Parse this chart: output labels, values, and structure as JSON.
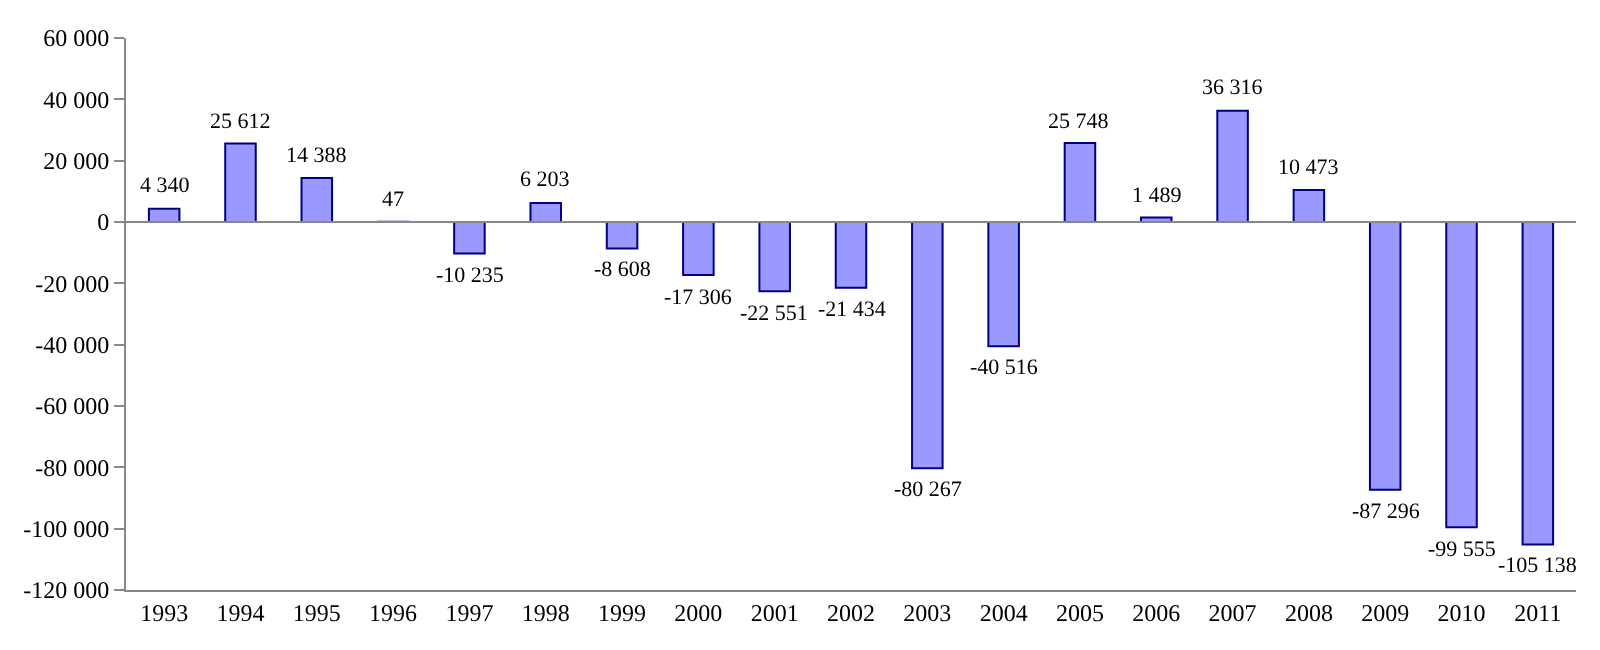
{
  "chart_data": {
    "type": "bar",
    "categories": [
      "1993",
      "1994",
      "1995",
      "1996",
      "1997",
      "1998",
      "1999",
      "2000",
      "2001",
      "2002",
      "2003",
      "2004",
      "2005",
      "2006",
      "2007",
      "2008",
      "2009",
      "2010",
      "2011"
    ],
    "values": [
      4340,
      25612,
      14388,
      47,
      -10235,
      6203,
      -8608,
      -17306,
      -22551,
      -21434,
      -80267,
      -40516,
      25748,
      1489,
      36316,
      10473,
      -87296,
      -99555,
      -105138
    ],
    "value_labels": [
      "4 340",
      "25 612",
      "14 388",
      "47",
      "-10 235",
      "6 203",
      "-8 608",
      "-17 306",
      "-22 551",
      "-21 434",
      "-80 267",
      "-40 516",
      "25 748",
      "1 489",
      "36 316",
      "10 473",
      "-87 296",
      "-99 555",
      "-105 138"
    ],
    "color": "#9999ff",
    "ylim": [
      -120000,
      60000
    ],
    "yticks": [
      {
        "value": -120000,
        "label": "-120 000"
      },
      {
        "value": -100000,
        "label": "-100 000"
      },
      {
        "value": -80000,
        "label": "-80 000"
      },
      {
        "value": -60000,
        "label": "-60 000"
      },
      {
        "value": -40000,
        "label": "-40 000"
      },
      {
        "value": -20000,
        "label": "-20 000"
      },
      {
        "value": 0,
        "label": "0"
      },
      {
        "value": 20000,
        "label": "20 000"
      },
      {
        "value": 40000,
        "label": "40 000"
      },
      {
        "value": 60000,
        "label": "60 000"
      }
    ],
    "ref_lines": [
      {
        "axis": "y",
        "value": 0,
        "color": "#888888"
      }
    ]
  }
}
